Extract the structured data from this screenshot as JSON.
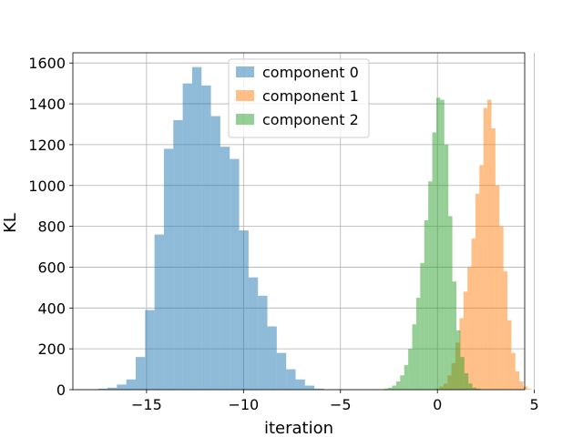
{
  "chart_data": {
    "type": "histogram",
    "title": "",
    "xlabel": "iteration",
    "ylabel": "KL",
    "xlim": [
      -18.8,
      4.5
    ],
    "ylim": [
      0,
      1650
    ],
    "xticks": [
      -15,
      -10,
      -5,
      0,
      5
    ],
    "xtick_labels": [
      "−15",
      "−10",
      "−5",
      "0",
      "5"
    ],
    "yticks": [
      0,
      200,
      400,
      600,
      800,
      1000,
      1200,
      1400,
      1600
    ],
    "ytick_labels": [
      "0",
      "200",
      "400",
      "600",
      "800",
      "1000",
      "1200",
      "1400",
      "1600"
    ],
    "grid": true,
    "legend_position": "upper center",
    "bar_alpha": 0.5,
    "series": [
      {
        "name": "component 0",
        "color": "#1f77b4",
        "bin_start": -17.5,
        "bin_width": 0.485,
        "counts": [
          5,
          10,
          25,
          50,
          160,
          390,
          760,
          1180,
          1320,
          1500,
          1580,
          1490,
          1340,
          1190,
          1130,
          780,
          550,
          460,
          310,
          180,
          100,
          50,
          20,
          5
        ]
      },
      {
        "name": "component 1",
        "color": "#ff7f0e",
        "bin_start": -0.1,
        "bin_width": 0.206,
        "counts": [
          5,
          15,
          30,
          70,
          130,
          230,
          350,
          480,
          600,
          740,
          960,
          1100,
          1380,
          1420,
          1280,
          1000,
          800,
          580,
          340,
          180,
          90,
          40,
          15,
          5
        ]
      },
      {
        "name": "component 2",
        "color": "#2ca02c",
        "bin_start": -2.75,
        "bin_width": 0.207,
        "counts": [
          5,
          10,
          20,
          40,
          70,
          120,
          200,
          320,
          450,
          620,
          830,
          1020,
          1260,
          1430,
          1420,
          1200,
          850,
          530,
          290,
          160,
          80,
          30,
          10,
          5
        ]
      }
    ]
  }
}
